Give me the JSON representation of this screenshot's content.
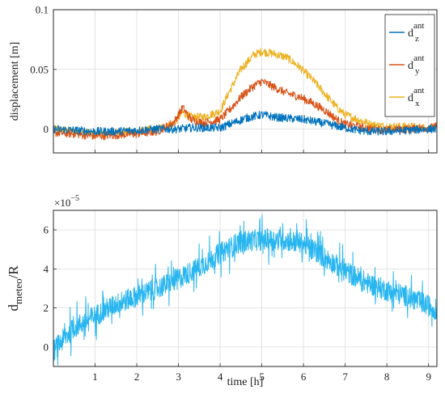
{
  "chart_data": [
    {
      "type": "line",
      "ylabel": "displacement [m]",
      "xlim": [
        0,
        9.2
      ],
      "ylim": [
        -0.02,
        0.1
      ],
      "xticks": [
        1,
        2,
        3,
        4,
        5,
        6,
        7,
        8,
        9
      ],
      "yticks": [
        0,
        0.05,
        0.1
      ],
      "ytick_labels": [
        "0",
        "0.05",
        "0.1"
      ],
      "grid": true,
      "legend_position": "top-right",
      "series": [
        {
          "name": "d_x^ant",
          "legend_base": "d",
          "legend_sup": "ant",
          "legend_sub": "x",
          "color": "#EDB120",
          "x": [
            0,
            0.5,
            1,
            1.5,
            2,
            2.5,
            2.9,
            3.1,
            3.3,
            3.6,
            4,
            4.2,
            4.5,
            4.8,
            5,
            5.3,
            5.6,
            5.9,
            6.2,
            6.5,
            6.8,
            7,
            7.3,
            7.6,
            8,
            8.5,
            9,
            9.2
          ],
          "y": [
            0,
            -0.002,
            -0.004,
            -0.003,
            -0.002,
            0.0,
            0.005,
            0.014,
            0.01,
            0.01,
            0.015,
            0.03,
            0.05,
            0.062,
            0.065,
            0.063,
            0.06,
            0.052,
            0.042,
            0.03,
            0.018,
            0.012,
            0.008,
            0.004,
            0.002,
            0.002,
            0.001,
            0.002
          ]
        },
        {
          "name": "d_y^ant",
          "legend_base": "d",
          "legend_sup": "ant",
          "legend_sub": "y",
          "color": "#D95319",
          "x": [
            0,
            0.5,
            1,
            1.5,
            2,
            2.5,
            2.9,
            3.1,
            3.3,
            3.6,
            4,
            4.2,
            4.5,
            4.8,
            5,
            5.3,
            5.6,
            5.9,
            6.2,
            6.5,
            6.8,
            7,
            7.3,
            7.6,
            8,
            8.5,
            9,
            9.2
          ],
          "y": [
            -0.003,
            -0.004,
            -0.006,
            -0.005,
            -0.004,
            -0.002,
            0.006,
            0.018,
            0.008,
            0.005,
            0.008,
            0.015,
            0.027,
            0.036,
            0.04,
            0.035,
            0.03,
            0.027,
            0.022,
            0.016,
            0.008,
            0.004,
            0.002,
            0.0,
            -0.001,
            0.0,
            0.001,
            0.002
          ]
        },
        {
          "name": "d_z^ant",
          "legend_base": "d",
          "legend_sup": "ant",
          "legend_sub": "z",
          "color": "#0072BD",
          "x": [
            0,
            0.5,
            1,
            1.5,
            2,
            2.5,
            3,
            3.3,
            3.6,
            4,
            4.3,
            4.6,
            5,
            5.3,
            5.6,
            6,
            6.3,
            6.6,
            7,
            7.3,
            7.6,
            8,
            8.5,
            9,
            9.2
          ],
          "y": [
            0,
            -0.001,
            -0.002,
            -0.002,
            -0.001,
            0.0,
            0.0,
            0.001,
            0.001,
            0.001,
            0.005,
            0.009,
            0.012,
            0.01,
            0.009,
            0.008,
            0.006,
            0.004,
            0.001,
            -0.001,
            -0.002,
            -0.002,
            -0.001,
            0.0,
            0.0
          ]
        }
      ]
    },
    {
      "type": "line",
      "xlabel": "time [h]",
      "ylabel_base": "d",
      "ylabel_sub": "meteo",
      "ylabel_tail": "/R",
      "multiplier_base": "×10",
      "multiplier_exp": "−5",
      "xlim": [
        0,
        9.2
      ],
      "ylim": [
        -1,
        7
      ],
      "xticks": [
        1,
        2,
        3,
        4,
        5,
        6,
        7,
        8,
        9
      ],
      "yticks": [
        0,
        2,
        4,
        6
      ],
      "grid": true,
      "series": [
        {
          "color": "#29B6F0",
          "x": [
            0,
            0.2,
            0.5,
            1,
            1.5,
            2,
            2.5,
            3,
            3.5,
            4,
            4.5,
            5,
            5.5,
            6,
            6.5,
            7,
            7.5,
            8,
            8.5,
            9,
            9.2
          ],
          "y": [
            -0.2,
            0.3,
            1.0,
            1.6,
            2.2,
            2.6,
            3.0,
            3.5,
            4.1,
            4.8,
            5.4,
            5.5,
            5.5,
            5.3,
            4.6,
            3.9,
            3.3,
            2.9,
            2.6,
            2.1,
            1.9
          ]
        }
      ]
    }
  ]
}
